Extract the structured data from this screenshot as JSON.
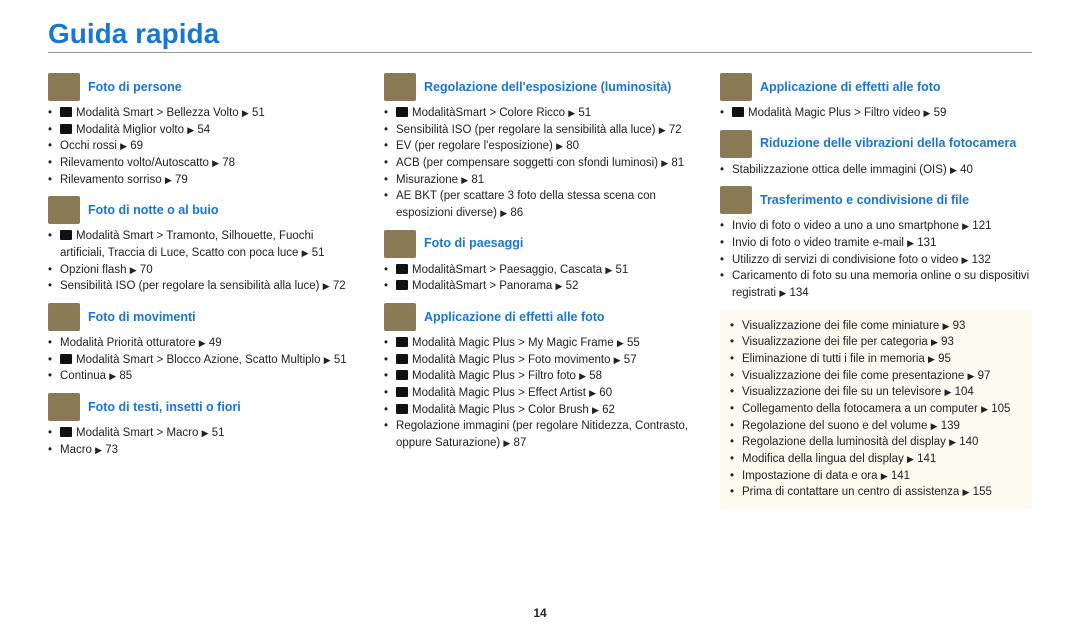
{
  "page": {
    "title": "Guida rapida",
    "number": "14",
    "triangle": "▶",
    "colors": {
      "accent": "#1976d2",
      "thumb_bg": "#8a7a55",
      "box_bg": "#fdfaf0",
      "text": "#222222",
      "rule": "#999999"
    },
    "font": {
      "title_size_pt": 21,
      "section_title_size_pt": 9.5,
      "body_size_pt": 8.5
    }
  },
  "columns": [
    {
      "sections": [
        {
          "title": "Foto di persone",
          "thumb": true,
          "items": [
            {
              "icon": true,
              "text": "Modalità Smart > Bellezza Volto",
              "page": "51"
            },
            {
              "icon": true,
              "text": "Modalità Miglior volto",
              "page": "54"
            },
            {
              "text": "Occhi rossi",
              "page": "69"
            },
            {
              "text": "Rilevamento volto/Autoscatto",
              "page": "78"
            },
            {
              "text": "Rilevamento sorriso",
              "page": "79"
            }
          ]
        },
        {
          "title": "Foto di notte o al buio",
          "thumb": true,
          "items": [
            {
              "icon": true,
              "text": "Modalità Smart > Tramonto, Silhouette, Fuochi artificiali, Traccia di Luce, Scatto con poca luce",
              "page": "51"
            },
            {
              "text": "Opzioni flash",
              "page": "70"
            },
            {
              "text": "Sensibilità ISO (per regolare la sensibilità alla luce)",
              "page": "72"
            }
          ]
        },
        {
          "title": "Foto di movimenti",
          "thumb": true,
          "items": [
            {
              "text": "Modalità Priorità otturatore",
              "page": "49"
            },
            {
              "icon": true,
              "text": "Modalità Smart > Blocco Azione, Scatto Multiplo",
              "page": "51"
            },
            {
              "text": "Continua",
              "page": "85"
            }
          ]
        },
        {
          "title": "Foto di testi, insetti o fiori",
          "thumb": true,
          "items": [
            {
              "icon": true,
              "text": "Modalità Smart > Macro",
              "page": "51"
            },
            {
              "text": "Macro",
              "page": "73"
            }
          ]
        }
      ]
    },
    {
      "sections": [
        {
          "title": "Regolazione dell'esposizione (luminosità)",
          "thumb": true,
          "items": [
            {
              "icon": true,
              "text": "ModalitàSmart > Colore Ricco",
              "page": "51"
            },
            {
              "text": "Sensibilità ISO (per regolare la sensibilità alla luce)",
              "page": "72"
            },
            {
              "text": "EV (per regolare l'esposizione)",
              "page": "80"
            },
            {
              "text": "ACB (per compensare soggetti con sfondi luminosi)",
              "page": "81"
            },
            {
              "text": "Misurazione",
              "page": "81"
            },
            {
              "text": "AE BKT (per scattare 3 foto della stessa scena con esposizioni diverse)",
              "page": "86"
            }
          ]
        },
        {
          "title": "Foto di paesaggi",
          "thumb": true,
          "items": [
            {
              "icon": true,
              "text": "ModalitàSmart > Paesaggio, Cascata",
              "page": "51"
            },
            {
              "icon": true,
              "text": "ModalitàSmart > Panorama",
              "page": "52"
            }
          ]
        },
        {
          "title": "Applicazione di effetti alle foto",
          "thumb": true,
          "items": [
            {
              "icon": true,
              "text": "Modalità Magic Plus > My Magic Frame",
              "page": "55"
            },
            {
              "icon": true,
              "text": "Modalità Magic Plus > Foto movimento",
              "page": "57"
            },
            {
              "icon": true,
              "text": "Modalità Magic Plus > Filtro foto",
              "page": "58"
            },
            {
              "icon": true,
              "text": "Modalità Magic Plus > Effect Artist",
              "page": "60"
            },
            {
              "icon": true,
              "text": "Modalità Magic Plus > Color Brush",
              "page": "62"
            },
            {
              "text": "Regolazione immagini (per regolare Nitidezza, Contrasto, oppure Saturazione)",
              "page": "87"
            }
          ]
        }
      ]
    },
    {
      "sections": [
        {
          "title": "Applicazione di effetti alle foto",
          "thumb": true,
          "items": [
            {
              "icon": true,
              "text": "Modalità Magic Plus > Filtro video",
              "page": "59"
            }
          ]
        },
        {
          "title": "Riduzione delle vibrazioni della fotocamera",
          "thumb": true,
          "items": [
            {
              "text": "Stabilizzazione ottica delle immagini (OIS)",
              "page": "40"
            }
          ]
        },
        {
          "title": "Trasferimento e condivisione di file",
          "thumb": true,
          "items": [
            {
              "text": "Invio di foto o video a uno a uno smartphone",
              "page": "121"
            },
            {
              "text": "Invio di foto o video tramite e-mail",
              "page": "131"
            },
            {
              "text": "Utilizzo di servizi di condivisione foto o video",
              "page": "132"
            },
            {
              "text": "Caricamento di foto su una memoria online o su dispositivi registrati",
              "page": "134"
            }
          ]
        }
      ],
      "box_items": [
        {
          "text": "Visualizzazione dei file come miniature",
          "page": "93"
        },
        {
          "text": "Visualizzazione dei file per categoria",
          "page": "93"
        },
        {
          "text": "Eliminazione di tutti i file in memoria",
          "page": "95"
        },
        {
          "text": "Visualizzazione dei file come presentazione",
          "page": "97"
        },
        {
          "text": "Visualizzazione dei file su un televisore",
          "page": "104"
        },
        {
          "text": "Collegamento della fotocamera a un computer",
          "page": "105"
        },
        {
          "text": "Regolazione del suono e del volume",
          "page": "139"
        },
        {
          "text": "Regolazione della luminosità del display",
          "page": "140"
        },
        {
          "text": "Modifica della lingua del display",
          "page": "141"
        },
        {
          "text": "Impostazione di data e ora",
          "page": "141"
        },
        {
          "text": "Prima di contattare un centro di assistenza",
          "page": "155"
        }
      ]
    }
  ]
}
